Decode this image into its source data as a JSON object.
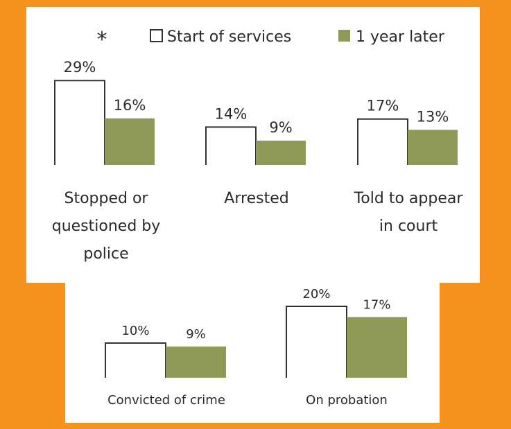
{
  "colors": {
    "background": "#f5921e",
    "panel": "#ffffff",
    "series_start_fill": "#ffffff",
    "series_start_stroke": "#333333",
    "series_later_fill": "#8f9a56",
    "text": "#2a2a2a"
  },
  "legend": {
    "marker": "*",
    "items": [
      {
        "label": "Start of services",
        "style": "outline"
      },
      {
        "label": "1 year later",
        "style": "filled"
      }
    ]
  },
  "chart_data": [
    {
      "type": "bar",
      "categories": [
        "Stopped or questioned by police"
      ],
      "series": [
        {
          "name": "Start of services",
          "values": [
            29
          ]
        },
        {
          "name": "1 year later",
          "values": [
            16
          ]
        }
      ],
      "value_labels": [
        "29%",
        "16%"
      ],
      "category_label_lines": [
        "Stopped or",
        "questioned by",
        "police"
      ]
    },
    {
      "type": "bar",
      "categories": [
        "Arrested"
      ],
      "series": [
        {
          "name": "Start of services",
          "values": [
            14
          ]
        },
        {
          "name": "1 year later",
          "values": [
            9
          ]
        }
      ],
      "value_labels": [
        "14%",
        "9%"
      ],
      "category_label_lines": [
        "Arrested"
      ]
    },
    {
      "type": "bar",
      "categories": [
        "Told to appear in court"
      ],
      "series": [
        {
          "name": "Start of services",
          "values": [
            17
          ]
        },
        {
          "name": "1 year later",
          "values": [
            13
          ]
        }
      ],
      "value_labels": [
        "17%",
        "13%"
      ],
      "category_label_lines": [
        "Told to appear",
        "in court"
      ]
    },
    {
      "type": "bar",
      "categories": [
        "Convicted of crime"
      ],
      "series": [
        {
          "name": "Start of services",
          "values": [
            10
          ]
        },
        {
          "name": "1 year later",
          "values": [
            9
          ]
        }
      ],
      "value_labels": [
        "10%",
        "9%"
      ],
      "category_label_lines": [
        "Convicted of crime"
      ]
    },
    {
      "type": "bar",
      "categories": [
        "On probation"
      ],
      "series": [
        {
          "name": "Start of services",
          "values": [
            20
          ]
        },
        {
          "name": "1 year later",
          "values": [
            17
          ]
        }
      ],
      "value_labels": [
        "20%",
        "17%"
      ],
      "category_label_lines": [
        "On probation"
      ]
    }
  ]
}
